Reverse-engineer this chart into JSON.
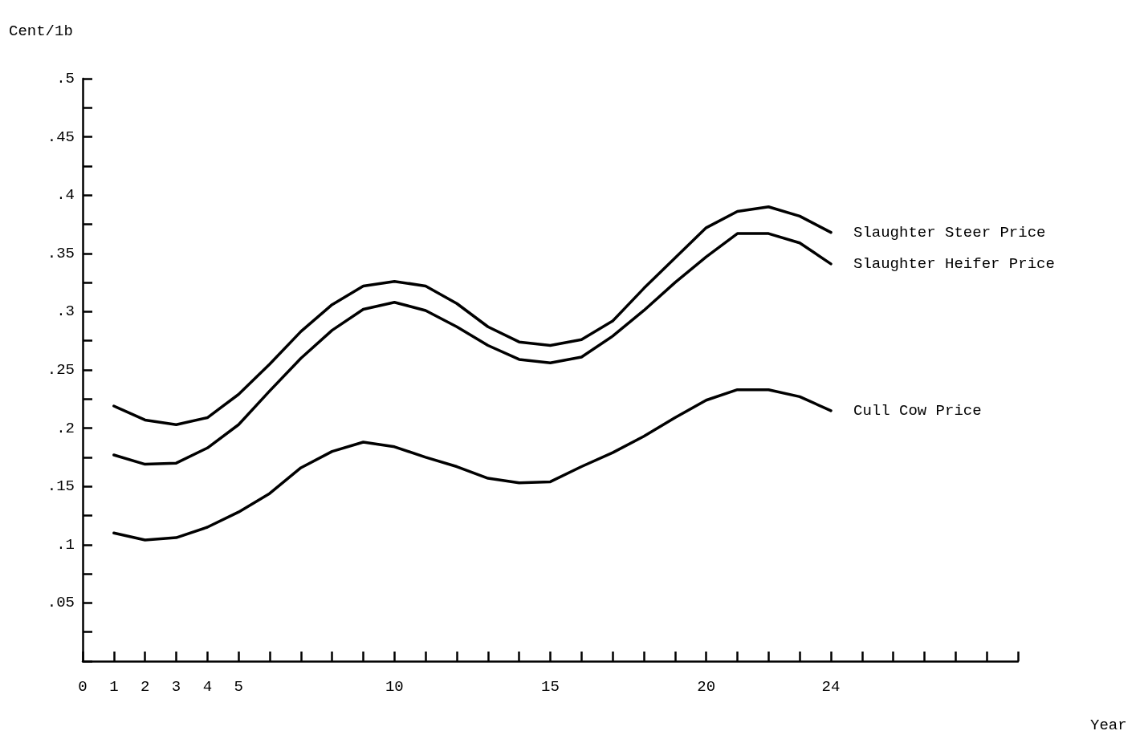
{
  "chart_data": {
    "type": "line",
    "xlabel": "Year",
    "ylabel": "Cent/1b",
    "x": [
      1,
      2,
      3,
      4,
      5,
      6,
      7,
      8,
      9,
      10,
      11,
      12,
      13,
      14,
      15,
      16,
      17,
      18,
      19,
      20,
      21,
      22,
      23,
      24
    ],
    "series": [
      {
        "name": "Slaughter Steer Price",
        "color": "#000000",
        "values": [
          0.219,
          0.207,
          0.203,
          0.209,
          0.229,
          0.255,
          0.283,
          0.306,
          0.322,
          0.326,
          0.322,
          0.307,
          0.287,
          0.274,
          0.271,
          0.276,
          0.292,
          0.32,
          0.346,
          0.372,
          0.386,
          0.39,
          0.382,
          0.368
        ]
      },
      {
        "name": "Slaughter Heifer Price",
        "color": "#000000",
        "values": [
          0.177,
          0.169,
          0.17,
          0.183,
          0.203,
          0.232,
          0.26,
          0.284,
          0.302,
          0.308,
          0.301,
          0.287,
          0.271,
          0.259,
          0.256,
          0.261,
          0.279,
          0.301,
          0.325,
          0.347,
          0.367,
          0.367,
          0.359,
          0.341
        ]
      },
      {
        "name": "Cull Cow Price",
        "color": "#000000",
        "values": [
          0.11,
          0.104,
          0.106,
          0.115,
          0.128,
          0.144,
          0.166,
          0.18,
          0.188,
          0.184,
          0.175,
          0.167,
          0.157,
          0.153,
          0.154,
          0.167,
          0.179,
          0.193,
          0.209,
          0.224,
          0.233,
          0.233,
          0.227,
          0.215
        ]
      }
    ],
    "xlim": [
      0,
      30
    ],
    "xticks": [
      0,
      1,
      2,
      3,
      4,
      5,
      {
        "value": 6,
        "label": null
      },
      {
        "value": 7,
        "label": null
      },
      {
        "value": 8,
        "label": null
      },
      {
        "value": 9,
        "label": null
      },
      10,
      {
        "value": 11,
        "label": null
      },
      {
        "value": 12,
        "label": null
      },
      {
        "value": 13,
        "label": null
      },
      {
        "value": 14,
        "label": null
      },
      15,
      {
        "value": 16,
        "label": null
      },
      {
        "value": 17,
        "label": null
      },
      {
        "value": 18,
        "label": null
      },
      {
        "value": 19,
        "label": null
      },
      20,
      {
        "value": 21,
        "label": null
      },
      {
        "value": 22,
        "label": null
      },
      {
        "value": 23,
        "label": null
      },
      24,
      {
        "value": 25,
        "label": null
      },
      {
        "value": 26,
        "label": null
      },
      {
        "value": 27,
        "label": null
      },
      {
        "value": 28,
        "label": null
      },
      {
        "value": 29,
        "label": null
      },
      {
        "value": 30,
        "label": null
      }
    ],
    "ylim": [
      0,
      0.5
    ],
    "yticks": [
      {
        "value": 0,
        "label": null
      },
      {
        "value": 0.025,
        "label": null
      },
      {
        "value": 0.05,
        "label": ".05"
      },
      {
        "value": 0.075,
        "label": null
      },
      {
        "value": 0.1,
        "label": ".1"
      },
      {
        "value": 0.125,
        "label": null
      },
      {
        "value": 0.15,
        "label": ".15"
      },
      {
        "value": 0.175,
        "label": null
      },
      {
        "value": 0.2,
        "label": ".2"
      },
      {
        "value": 0.225,
        "label": null
      },
      {
        "value": 0.25,
        "label": ".25"
      },
      {
        "value": 0.275,
        "label": null
      },
      {
        "value": 0.3,
        "label": ".3"
      },
      {
        "value": 0.325,
        "label": null
      },
      {
        "value": 0.35,
        "label": ".35"
      },
      {
        "value": 0.375,
        "label": null
      },
      {
        "value": 0.4,
        "label": ".4"
      },
      {
        "value": 0.425,
        "label": null
      },
      {
        "value": 0.45,
        "label": ".45"
      },
      {
        "value": 0.475,
        "label": null
      },
      {
        "value": 0.5,
        "label": ".5"
      }
    ],
    "grid": false,
    "legend": false,
    "marker": "none",
    "line_style": "solid"
  }
}
